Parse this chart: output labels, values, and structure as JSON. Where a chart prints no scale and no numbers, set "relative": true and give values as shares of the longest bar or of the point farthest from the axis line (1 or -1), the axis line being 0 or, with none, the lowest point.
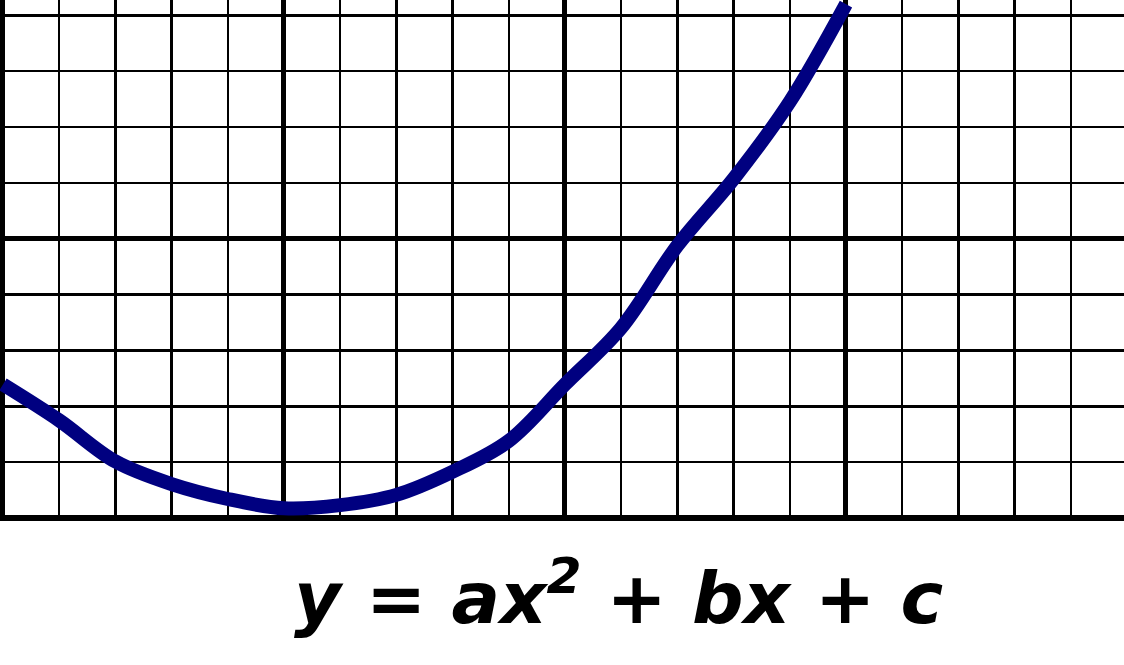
{
  "chart_data": {
    "type": "line",
    "relative": true,
    "grid": true,
    "marker": "none",
    "line_style": "solid",
    "categories": [
      null,
      null,
      null,
      null,
      null,
      null,
      null,
      null,
      null,
      null,
      null,
      null,
      null,
      null,
      null,
      null
    ],
    "series": [
      {
        "color": "#000080",
        "values": [
          0.26,
          0.19,
          0.11,
          0.066,
          0.037,
          0.019,
          0.025,
          0.045,
          0.09,
          0.15,
          0.26,
          0.37,
          0.53,
          0.66,
          0.81,
          1
        ]
      }
    ],
    "annotations": [
      "y = ax$^{2}$ + bx + c"
    ]
  }
}
